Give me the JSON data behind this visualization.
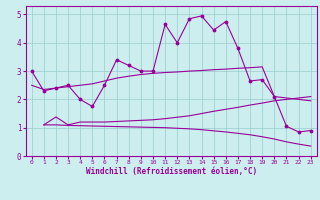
{
  "xlabel": "Windchill (Refroidissement éolien,°C)",
  "bg_color": "#cceeee",
  "grid_color": "#99cccc",
  "line_color": "#990099",
  "xlim": [
    -0.5,
    23.5
  ],
  "ylim": [
    0,
    5.3
  ],
  "xticks": [
    0,
    1,
    2,
    3,
    4,
    5,
    6,
    7,
    8,
    9,
    10,
    11,
    12,
    13,
    14,
    15,
    16,
    17,
    18,
    19,
    20,
    21,
    22,
    23
  ],
  "yticks": [
    0,
    1,
    2,
    3,
    4,
    5
  ],
  "line1_x": [
    0,
    1,
    2,
    3,
    4,
    5,
    6,
    7,
    8,
    9,
    10,
    11,
    12,
    13,
    14,
    15,
    16,
    17,
    18,
    19,
    20,
    21,
    22,
    23
  ],
  "line1_y": [
    3.0,
    2.3,
    2.4,
    2.5,
    2.0,
    1.75,
    2.5,
    3.4,
    3.2,
    3.0,
    3.0,
    4.65,
    4.0,
    4.85,
    4.95,
    4.45,
    4.75,
    3.8,
    2.65,
    2.7,
    2.1,
    1.05,
    0.85,
    0.9
  ],
  "line2_x": [
    0,
    1,
    2,
    3,
    4,
    5,
    6,
    7,
    8,
    9,
    10,
    11,
    12,
    13,
    14,
    15,
    16,
    17,
    18,
    19,
    20,
    21,
    22,
    23
  ],
  "line2_y": [
    2.5,
    2.35,
    2.4,
    2.45,
    2.5,
    2.55,
    2.65,
    2.75,
    2.82,
    2.88,
    2.92,
    2.95,
    2.97,
    3.0,
    3.02,
    3.05,
    3.07,
    3.1,
    3.12,
    3.15,
    2.1,
    2.05,
    2.0,
    1.95
  ],
  "line3_x": [
    1,
    2,
    3,
    4,
    5,
    6,
    7,
    8,
    9,
    10,
    11,
    12,
    13,
    14,
    15,
    16,
    17,
    18,
    19,
    20,
    21,
    22,
    23
  ],
  "line3_y": [
    1.1,
    1.38,
    1.1,
    1.2,
    1.2,
    1.2,
    1.22,
    1.24,
    1.26,
    1.28,
    1.32,
    1.37,
    1.42,
    1.5,
    1.58,
    1.65,
    1.72,
    1.8,
    1.87,
    1.95,
    2.0,
    2.05,
    2.1
  ],
  "line4_x": [
    1,
    2,
    3,
    4,
    5,
    6,
    7,
    8,
    9,
    10,
    11,
    12,
    13,
    14,
    15,
    16,
    17,
    18,
    19,
    20,
    21,
    22,
    23
  ],
  "line4_y": [
    1.1,
    1.1,
    1.08,
    1.07,
    1.06,
    1.05,
    1.04,
    1.03,
    1.02,
    1.01,
    1.0,
    0.98,
    0.96,
    0.93,
    0.89,
    0.85,
    0.8,
    0.75,
    0.68,
    0.6,
    0.5,
    0.42,
    0.35
  ]
}
